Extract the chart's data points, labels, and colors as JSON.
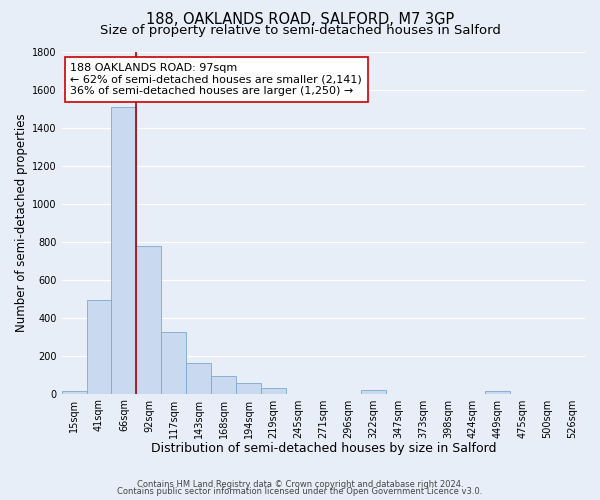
{
  "title_line1": "188, OAKLANDS ROAD, SALFORD, M7 3GP",
  "title_line2": "Size of property relative to semi-detached houses in Salford",
  "xlabel": "Distribution of semi-detached houses by size in Salford",
  "ylabel": "Number of semi-detached properties",
  "bar_labels": [
    "15sqm",
    "41sqm",
    "66sqm",
    "92sqm",
    "117sqm",
    "143sqm",
    "168sqm",
    "194sqm",
    "219sqm",
    "245sqm",
    "271sqm",
    "296sqm",
    "322sqm",
    "347sqm",
    "373sqm",
    "398sqm",
    "424sqm",
    "449sqm",
    "475sqm",
    "500sqm",
    "526sqm"
  ],
  "bar_values": [
    15,
    490,
    1510,
    775,
    325,
    160,
    95,
    55,
    30,
    0,
    0,
    0,
    20,
    0,
    0,
    0,
    0,
    15,
    0,
    0,
    0
  ],
  "bar_color": "#c9d9f0",
  "bar_edgecolor": "#7aaad0",
  "background_color": "#e8eef8",
  "grid_color": "#ffffff",
  "vline_x": 3,
  "vline_color": "#aa0000",
  "annotation_title": "188 OAKLANDS ROAD: 97sqm",
  "annotation_line1": "← 62% of semi-detached houses are smaller (2,141)",
  "annotation_line2": "36% of semi-detached houses are larger (1,250) →",
  "annotation_box_facecolor": "#ffffff",
  "annotation_box_edgecolor": "#cc0000",
  "ylim": [
    0,
    1800
  ],
  "yticks": [
    0,
    200,
    400,
    600,
    800,
    1000,
    1200,
    1400,
    1600,
    1800
  ],
  "footer_line1": "Contains HM Land Registry data © Crown copyright and database right 2024.",
  "footer_line2": "Contains public sector information licensed under the Open Government Licence v3.0.",
  "title_fontsize": 10.5,
  "subtitle_fontsize": 9.5,
  "tick_fontsize": 7,
  "ylabel_fontsize": 8.5,
  "xlabel_fontsize": 9,
  "annotation_fontsize": 8,
  "footer_fontsize": 6
}
